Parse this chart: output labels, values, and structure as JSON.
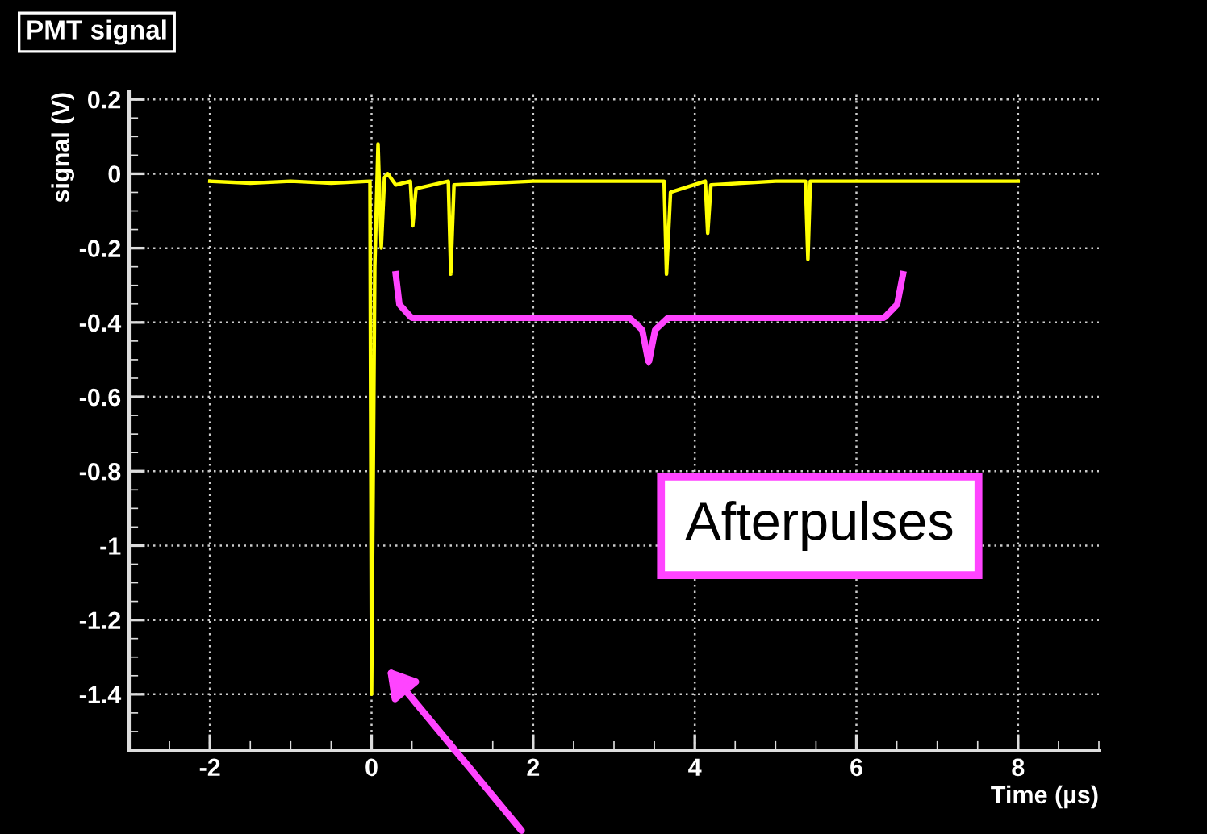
{
  "chart_data": {
    "type": "line",
    "title": "PMT signal",
    "xlabel": "Time (µs)",
    "ylabel": "signal (V)",
    "x": [
      -2,
      -1.5,
      -1,
      -0.5,
      -0.02,
      0,
      0.04,
      0.08,
      0.12,
      0.16,
      0.2,
      0.3,
      0.48,
      0.51,
      0.55,
      0.95,
      0.98,
      1.02,
      2,
      3,
      3.62,
      3.65,
      3.7,
      4.13,
      4.16,
      4.2,
      5,
      5.37,
      5.4,
      5.43,
      6,
      7,
      8
    ],
    "series": [
      {
        "color": "#ffff00",
        "values": [
          -0.02,
          -0.025,
          -0.02,
          -0.025,
          -0.02,
          -1.4,
          -0.25,
          0.08,
          -0.2,
          -0.01,
          0.0,
          -0.03,
          -0.02,
          -0.14,
          -0.04,
          -0.02,
          -0.27,
          -0.03,
          -0.02,
          -0.02,
          -0.02,
          -0.27,
          -0.05,
          -0.02,
          -0.16,
          -0.03,
          -0.02,
          -0.02,
          -0.23,
          -0.02,
          -0.02,
          -0.02,
          -0.02
        ]
      }
    ],
    "xlim": [
      -3,
      9
    ],
    "xticks": [
      -2,
      0,
      2,
      4,
      6,
      8
    ],
    "ylim": [
      -1.55,
      0.22
    ],
    "yticks": [
      {
        "value": 0.2,
        "label": "0.2"
      },
      0,
      {
        "value": -0.2,
        "label": "-0.2"
      },
      {
        "value": -0.4,
        "label": "-0.4"
      },
      {
        "value": -0.6,
        "label": "-0.6"
      },
      {
        "value": -0.8,
        "label": "-0.8"
      },
      {
        "value": -1,
        "label": "-1"
      },
      {
        "value": -1.2,
        "label": "-1.2"
      },
      {
        "value": -1.4,
        "label": "-1.4"
      }
    ],
    "grid": true,
    "marker": "none",
    "line_style": "solid",
    "annotations": [
      "Afterpulses"
    ]
  }
}
